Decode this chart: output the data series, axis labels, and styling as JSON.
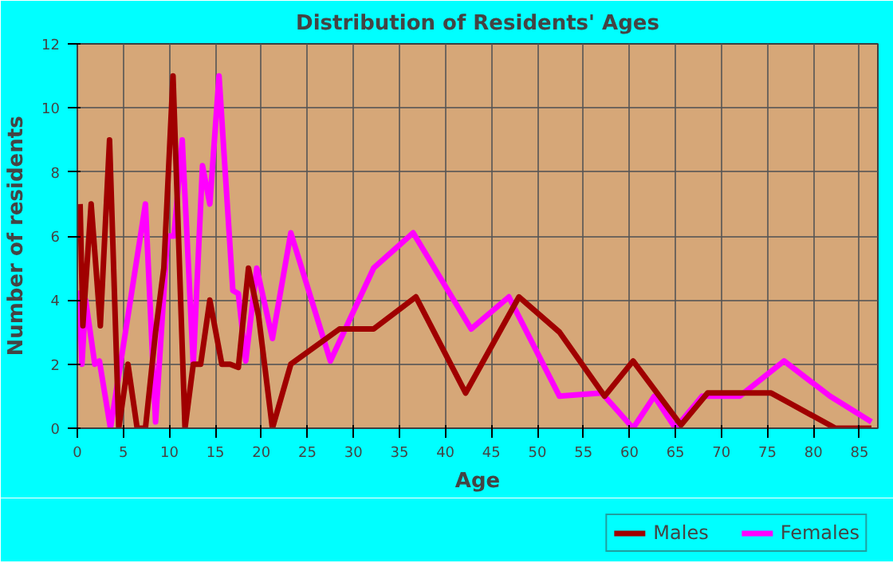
{
  "chart_data": {
    "type": "line",
    "title": "Distribution of Residents' Ages",
    "xlabel": "Age",
    "ylabel": "Number of residents",
    "xlim": [
      0,
      87
    ],
    "ylim": [
      0,
      12
    ],
    "xticks": [
      0,
      5,
      10,
      15,
      20,
      25,
      30,
      35,
      40,
      45,
      50,
      55,
      60,
      65,
      70,
      75,
      80,
      85
    ],
    "yticks": [
      0,
      2,
      4,
      6,
      8,
      10,
      12
    ],
    "grid": true,
    "legend": "bottom right",
    "line_style": "solid",
    "series": [
      {
        "name": "Males",
        "color": "#a00000",
        "x": [
          0.3,
          0.6,
          1.5,
          2.5,
          3.5,
          4.5,
          5.5,
          6.5,
          7.4,
          8.5,
          9.4,
          10.4,
          11.7,
          12.6,
          13.4,
          14.4,
          15.7,
          16.6,
          17.5,
          18.6,
          19.7,
          21.2,
          23.2,
          28.5,
          32.2,
          36.8,
          42.2,
          48,
          52.4,
          57.3,
          60.4,
          65.6,
          68.5,
          75.4,
          82.4,
          86.3
        ],
        "values": [
          7,
          3.2,
          7,
          3.2,
          9,
          0,
          2,
          0,
          0,
          3,
          5,
          11,
          0,
          2,
          2,
          4,
          2,
          2,
          1.9,
          5,
          3.5,
          0,
          2,
          3.1,
          3.1,
          4.1,
          1.1,
          4.1,
          3,
          1,
          2.1,
          0.1,
          1.1,
          1.1,
          0,
          0
        ]
      },
      {
        "name": "Females",
        "color": "#ff00ff",
        "x": [
          0.2,
          0.5,
          0.9,
          1.9,
          2.4,
          3.6,
          7.4,
          8.5,
          9.8,
          10.5,
          11.4,
          12.6,
          13.6,
          14.4,
          15.4,
          16.9,
          17.5,
          18.3,
          19.5,
          21.2,
          23.2,
          27.5,
          32.2,
          36.5,
          42.8,
          46.9,
          52.4,
          57,
          60.4,
          62.7,
          65,
          67.9,
          72,
          76.8,
          81.8,
          86.3
        ],
        "values": [
          4.3,
          2,
          4,
          2,
          2.1,
          0,
          7,
          0.2,
          6,
          6,
          9,
          2,
          8.2,
          7,
          11,
          4.3,
          4.2,
          2.1,
          5,
          2.8,
          6.1,
          2.1,
          5,
          6.1,
          3.1,
          4.1,
          1,
          1.1,
          0,
          1,
          0,
          1,
          1,
          2.1,
          1,
          0.2
        ]
      }
    ]
  }
}
